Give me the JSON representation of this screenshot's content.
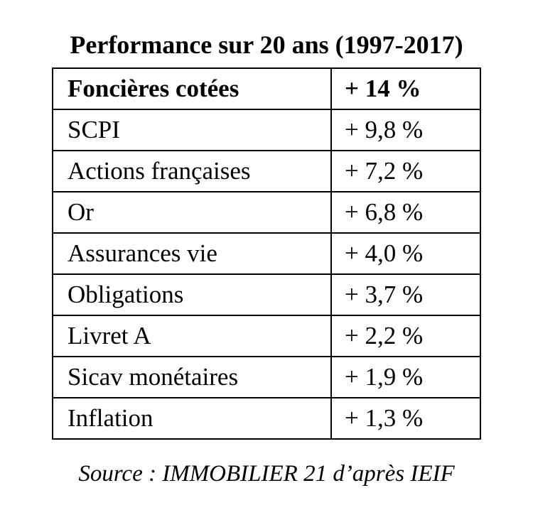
{
  "title": "Performance sur 20 ans (1997-2017)",
  "source": "Source : IMMOBILIER 21 d’après IEIF",
  "chart_data": {
    "type": "table",
    "title": "Performance sur 20 ans (1997-2017)",
    "rows": [
      {
        "label": "Foncières cotées",
        "value": "+ 14 %",
        "number": 14
      },
      {
        "label": "SCPI",
        "value": "+ 9,8 %",
        "number": 9.8
      },
      {
        "label": "Actions françaises",
        "value": "+ 7,2 %",
        "number": 7.2
      },
      {
        "label": "Or",
        "value": "+ 6,8 %",
        "number": 6.8
      },
      {
        "label": "Assurances vie",
        "value": "+ 4,0 %",
        "number": 4.0
      },
      {
        "label": "Obligations",
        "value": "+ 3,7 %",
        "number": 3.7
      },
      {
        "label": "Livret A",
        "value": "+ 2,2 %",
        "number": 2.2
      },
      {
        "label": "Sicav monétaires",
        "value": "+ 1,9 %",
        "number": 1.9
      },
      {
        "label": "Inflation",
        "value": "+ 1,3 %",
        "number": 1.3
      }
    ],
    "source": "Source : IMMOBILIER 21 d’après IEIF"
  }
}
